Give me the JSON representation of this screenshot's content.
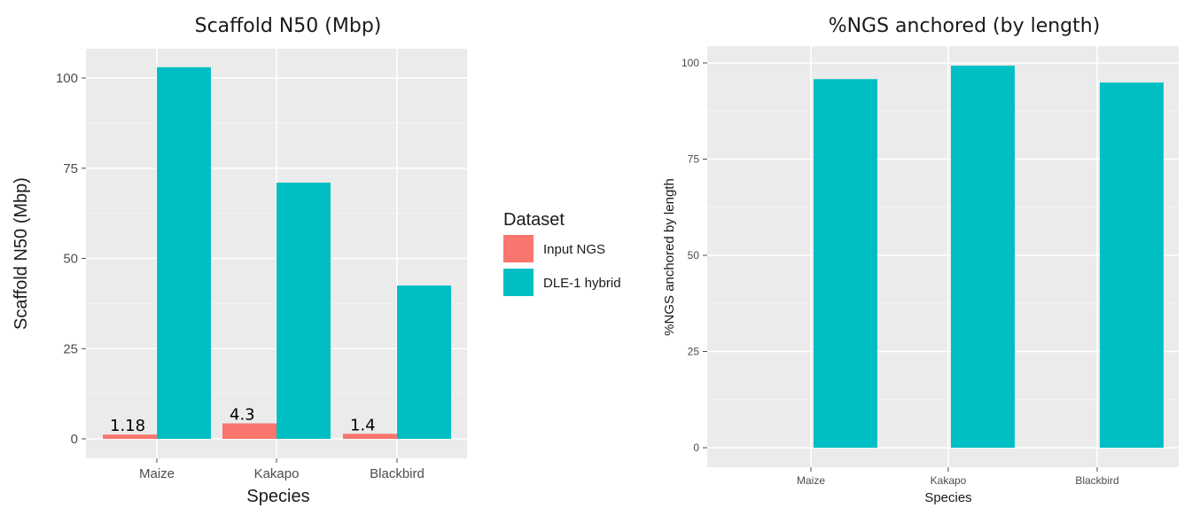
{
  "chart_data": [
    {
      "type": "bar",
      "title": "Scaffold N50 (Mbp)",
      "xlabel": "Species",
      "ylabel": "Scaffold N50 (Mbp)",
      "categories": [
        "Maize",
        "Kakapo",
        "Blackbird"
      ],
      "ylim": [
        0,
        105
      ],
      "yticks": [
        "0",
        "25",
        "50",
        "75",
        "100"
      ],
      "series": [
        {
          "name": "Input NGS",
          "values": [
            1.18,
            4.3,
            1.4
          ],
          "color": "#f8766d"
        },
        {
          "name": "DLE-1 hybrid",
          "values": [
            103,
            71,
            42.5
          ],
          "color": "#00bfc4"
        }
      ],
      "data_labels": [
        "1.18",
        "4.3",
        "1.4"
      ],
      "grid": true,
      "panel_background": "#ebebeb",
      "legend": {
        "title": "Dataset",
        "placement": "right"
      }
    },
    {
      "type": "bar",
      "title": "%NGS anchored (by length)",
      "xlabel": "Species",
      "ylabel": "%NGS anchored by length",
      "categories": [
        "Maize",
        "Kakapo",
        "Blackbird"
      ],
      "ylim": [
        0,
        100
      ],
      "yticks": [
        "0",
        "25",
        "50",
        "75",
        "100"
      ],
      "series": [
        {
          "name": "DLE-1 hybrid",
          "values": [
            95.8,
            99.3,
            94.9
          ],
          "color": "#00bfc4"
        }
      ],
      "grid": true,
      "panel_background": "#ebebeb"
    }
  ]
}
